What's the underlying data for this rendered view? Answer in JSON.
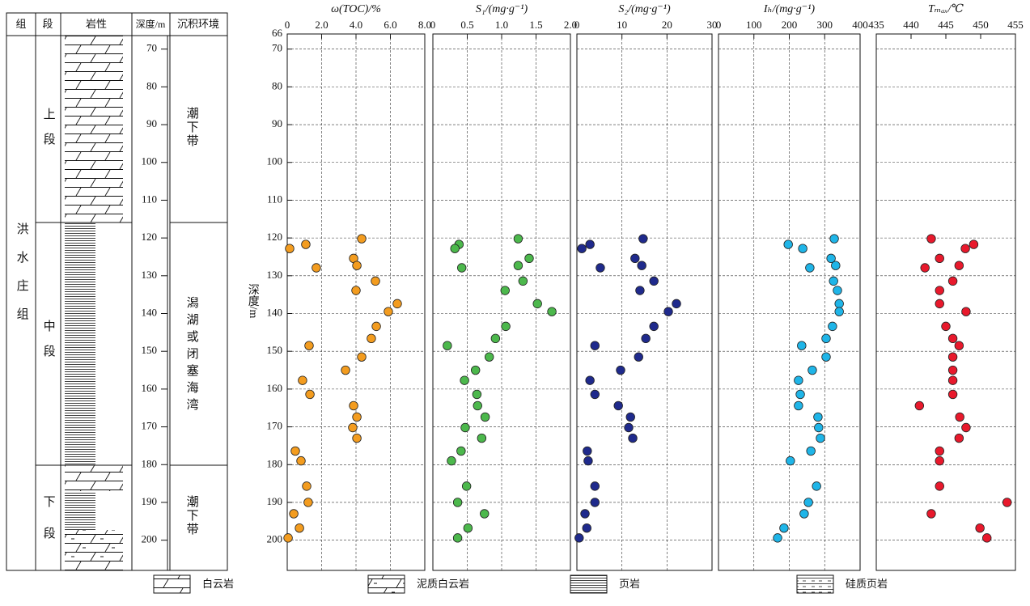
{
  "column": {
    "headers": [
      "组",
      "段",
      "岩性",
      "深度/m",
      "沉积环境"
    ],
    "formation": "洪水庄组",
    "members": [
      "上段",
      "中段",
      "下段"
    ],
    "environments": [
      "潮下带",
      "潟湖或闭塞海湾",
      "潮下带"
    ]
  },
  "legend": [
    "白云岩",
    "泥质白云岩",
    "页岩",
    "硅质页岩"
  ],
  "chart_data": [
    {
      "type": "scatter",
      "title": "ω(TOC)/%",
      "ylabel": "深度/m",
      "color": "#f39c1f",
      "grid": true,
      "xlim": [
        0,
        8
      ],
      "xticks": [
        0,
        {
          "value": 2,
          "label": "2.0"
        },
        {
          "value": 4,
          "label": "4.0"
        },
        {
          "value": 6,
          "label": "6.0"
        },
        {
          "value": 8,
          "label": "8.0"
        }
      ],
      "ylim": [
        66,
        208
      ],
      "yticks": [
        66,
        70,
        80,
        90,
        100,
        110,
        120,
        130,
        140,
        150,
        160,
        170,
        180,
        190,
        200
      ],
      "x": [
        4.33,
        1.08,
        0.14,
        3.86,
        4.05,
        1.69,
        5.13,
        4.0,
        6.4,
        5.88,
        5.18,
        4.89,
        1.27,
        4.33,
        3.39,
        0.89,
        1.32,
        3.86,
        4.05,
        3.81,
        4.05,
        0.47,
        0.8,
        1.13,
        1.22,
        0.38,
        0.71,
        0.05
      ],
      "y": [
        120.2,
        121.7,
        122.8,
        125.4,
        127.3,
        127.9,
        131.4,
        133.9,
        137.4,
        139.5,
        143.4,
        146.6,
        148.5,
        151.5,
        155.0,
        157.7,
        161.4,
        164.4,
        167.4,
        170.2,
        173.0,
        176.4,
        179.0,
        185.7,
        190.0,
        193.0,
        196.8,
        199.4
      ]
    },
    {
      "type": "scatter",
      "title": "S₁/(mg·g⁻¹)",
      "color": "#4cb84c",
      "grid": true,
      "xlim": [
        0,
        2
      ],
      "xticks": [
        0,
        0.5,
        {
          "value": 1,
          "label": "1.0"
        },
        1.5,
        {
          "value": 2,
          "label": "2.0"
        }
      ],
      "x": [
        1.24,
        0.38,
        0.32,
        1.4,
        1.24,
        0.42,
        1.31,
        1.05,
        1.52,
        1.73,
        1.06,
        0.91,
        0.21,
        0.82,
        0.62,
        0.46,
        0.64,
        0.65,
        0.76,
        0.47,
        0.71,
        0.41,
        0.27,
        0.49,
        0.36,
        0.75,
        0.51,
        0.36
      ],
      "y": [
        120.2,
        121.7,
        122.8,
        125.4,
        127.3,
        127.9,
        131.4,
        133.9,
        137.4,
        139.5,
        143.4,
        146.6,
        148.5,
        151.5,
        155.0,
        157.7,
        161.4,
        164.4,
        167.4,
        170.2,
        173.0,
        176.4,
        179.0,
        185.7,
        190.0,
        193.0,
        196.8,
        199.4
      ]
    },
    {
      "type": "scatter",
      "title": "S₂/(mg·g⁻¹)",
      "color": "#1f2a8c",
      "grid": true,
      "xlim": [
        0,
        30
      ],
      "xticks": [
        0,
        10,
        20,
        30
      ],
      "x": [
        14.7,
        2.9,
        1.1,
        12.9,
        14.4,
        5.2,
        17.1,
        14.0,
        22.1,
        20.3,
        17.1,
        15.3,
        4.0,
        13.7,
        9.7,
        2.9,
        4.0,
        9.2,
        11.9,
        11.5,
        12.4,
        2.3,
        2.5,
        4.0,
        4.0,
        1.8,
        2.2,
        0.5
      ],
      "y": [
        120.2,
        121.7,
        122.8,
        125.4,
        127.3,
        127.9,
        131.4,
        133.9,
        137.4,
        139.5,
        143.4,
        146.6,
        148.5,
        151.5,
        155.0,
        157.7,
        161.4,
        164.4,
        167.4,
        170.2,
        173.0,
        176.4,
        179.0,
        185.7,
        190.0,
        193.0,
        196.8,
        199.4
      ]
    },
    {
      "type": "scatter",
      "title": "Iₕ/(mg·g⁻¹)",
      "color": "#1fb5e8",
      "grid": true,
      "xlim": [
        0,
        400
      ],
      "xticks": [
        0,
        100,
        200,
        300,
        400
      ],
      "x": [
        327,
        197,
        238,
        318,
        331,
        258,
        325,
        336,
        341,
        341,
        322,
        304,
        235,
        304,
        265,
        226,
        231,
        226,
        281,
        283,
        288,
        261,
        203,
        277,
        254,
        242,
        185,
        167
      ],
      "y": [
        120.2,
        121.7,
        122.8,
        125.4,
        127.3,
        127.9,
        131.4,
        133.9,
        137.4,
        139.5,
        143.4,
        146.6,
        148.5,
        151.5,
        155.0,
        157.7,
        161.4,
        164.4,
        167.4,
        170.2,
        173.0,
        176.4,
        179.0,
        185.7,
        190.0,
        193.0,
        196.8,
        199.4
      ]
    },
    {
      "type": "scatter",
      "title": "Tₘₐₓ/℃",
      "color": "#e8192c",
      "grid": true,
      "xlim": [
        435,
        455
      ],
      "xticks": [
        435,
        440,
        445,
        450,
        455
      ],
      "x": [
        442.9,
        449.0,
        447.8,
        444.1,
        446.9,
        442.0,
        446.0,
        444.1,
        444.1,
        447.9,
        445.0,
        446.0,
        446.9,
        446.0,
        446.0,
        446.0,
        446.0,
        441.2,
        447.0,
        447.9,
        446.9,
        444.1,
        444.1,
        444.1,
        453.8,
        442.9,
        449.9,
        450.9
      ],
      "y": [
        120.2,
        121.7,
        122.8,
        125.4,
        127.3,
        127.9,
        131.4,
        133.9,
        137.4,
        139.5,
        143.4,
        146.6,
        148.5,
        151.5,
        155.0,
        157.7,
        161.4,
        164.4,
        167.4,
        170.2,
        173.0,
        176.4,
        179.0,
        185.7,
        190.0,
        193.0,
        196.8,
        199.4
      ]
    }
  ]
}
